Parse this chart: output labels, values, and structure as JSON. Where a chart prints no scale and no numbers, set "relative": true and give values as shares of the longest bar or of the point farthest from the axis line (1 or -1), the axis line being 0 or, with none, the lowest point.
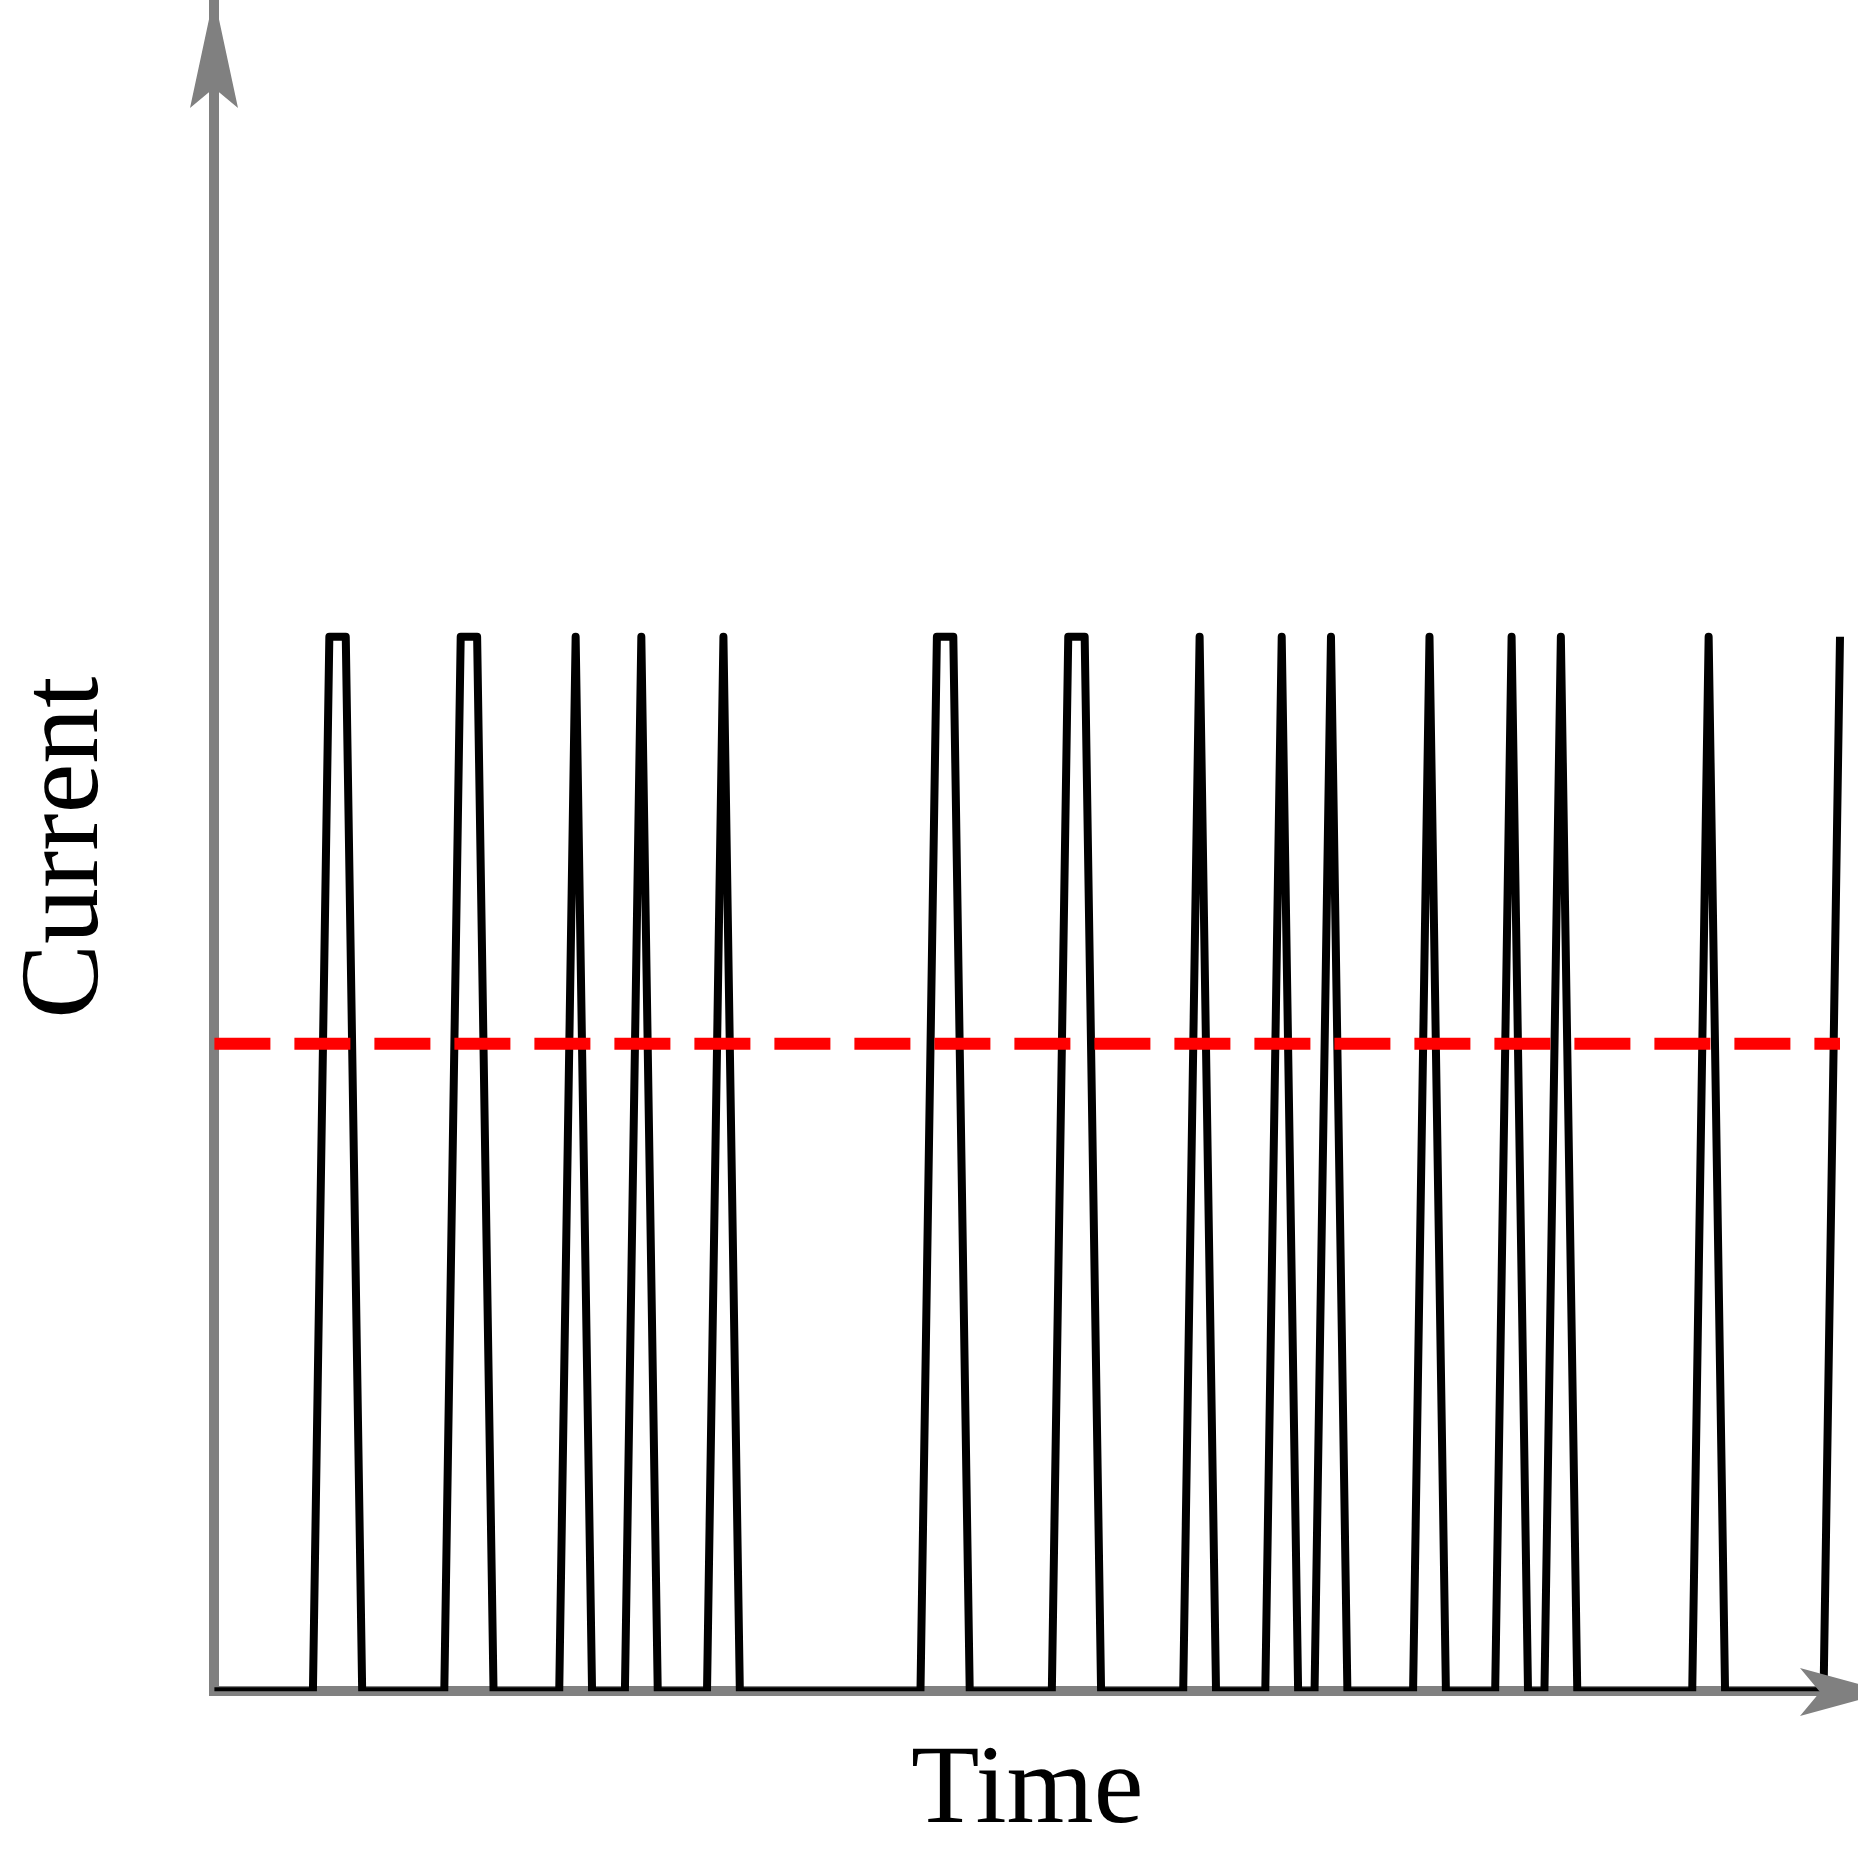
{
  "chart_data": {
    "type": "line",
    "relative": true,
    "xlabel": "Time",
    "ylabel": "Current",
    "legend": false,
    "grid": false,
    "marker": "none",
    "line_style": "solid",
    "categories": [
      null,
      null,
      null,
      null,
      null,
      null,
      null,
      null,
      null,
      null,
      null,
      null,
      null,
      null,
      null,
      null,
      null,
      null,
      null,
      null,
      null,
      null,
      null,
      null,
      null,
      null,
      null,
      null,
      null,
      null,
      null,
      null,
      null,
      null,
      null,
      null,
      null,
      null,
      null,
      null,
      null,
      null,
      null,
      null,
      null,
      null,
      null,
      null,
      null,
      null,
      null,
      null,
      null,
      null,
      null,
      null,
      null,
      null,
      null,
      null,
      null,
      null,
      null,
      null,
      null,
      null,
      null,
      null,
      null,
      null,
      null,
      null,
      null,
      null,
      null,
      null,
      null,
      null,
      null,
      null,
      null,
      null,
      null,
      null,
      null,
      null,
      null,
      null,
      null,
      null,
      null,
      null,
      null,
      null,
      null,
      null,
      null,
      null,
      null,
      null
    ],
    "series": [
      {
        "color": "#000000",
        "values": [
          0,
          0,
          0,
          0,
          0,
          0,
          0,
          1,
          1,
          0,
          0,
          0,
          0,
          0,
          0,
          1,
          1,
          0,
          0,
          0,
          0,
          0,
          1,
          0,
          0,
          0,
          1,
          0,
          0,
          0,
          0,
          1,
          0,
          0,
          0,
          0,
          0,
          0,
          0,
          0,
          0,
          0,
          0,
          0,
          1,
          1,
          0,
          0,
          0,
          0,
          0,
          0,
          1,
          1,
          0,
          0,
          0,
          0,
          0,
          0,
          1,
          0,
          0,
          0,
          0,
          1,
          0,
          0,
          1,
          0,
          0,
          0,
          0,
          0,
          1,
          0,
          0,
          0,
          0,
          1,
          0,
          0,
          1,
          0,
          0,
          0,
          0,
          0,
          0,
          0,
          0,
          1,
          0,
          0,
          0,
          0,
          0,
          0,
          0,
          1
        ]
      }
    ],
    "ref_lines": [
      {
        "axis": "y",
        "value": 0.614,
        "color": "#ff0000",
        "line_style": "dashed"
      }
    ]
  }
}
